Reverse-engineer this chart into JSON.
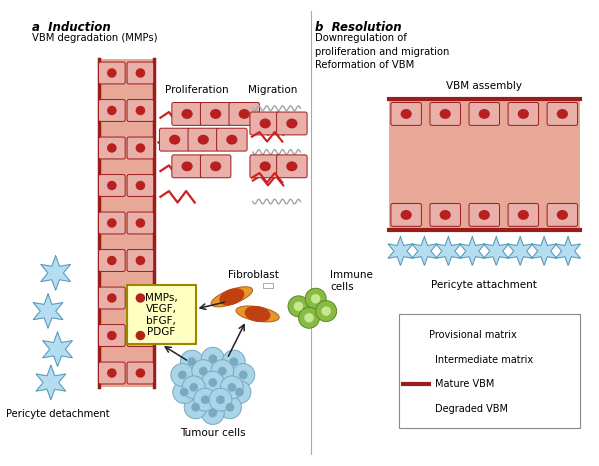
{
  "title_a": "a  Induction",
  "title_b": "b  Resolution",
  "subtitle_a": "VBM degradation (MMPs)",
  "subtitle_b": "Downregulation of\nproliferation and migration\nReformation of VBM",
  "label_proliferation": "Proliferation",
  "label_migration": "Migration",
  "label_vbm_assembly": "VBM assembly",
  "label_pericyte_detachment": "Pericyte detachment",
  "label_pericyte_attachment": "Pericyte attachment",
  "label_mmps": "MMPs,\nVEGF,\nbFGF,\nPDGF",
  "label_fibroblast": "Fibroblast",
  "label_immune": "Immune\ncells",
  "label_tumour": "Tumour cells",
  "legend_items": [
    "Provisional matrix",
    "Intermediate matrix",
    "Mature VBM",
    "Degraded VBM"
  ],
  "colors": {
    "vessel_fill": "#e8a898",
    "vessel_wall_outer": "#c87878",
    "vessel_dark_border": "#9b1c1c",
    "endothelial_cell": "#e8b0a8",
    "endothelial_border": "#9b1c1c",
    "nucleus": "#b82020",
    "pericyte_fill": "#a8d8ee",
    "pericyte_border": "#5090b0",
    "provisional_matrix": "#55cc33",
    "intermediate_matrix": "#aaaaaa",
    "mature_vbm": "#9b1c1c",
    "degraded_vbm": "#cc2020",
    "fibroblast_fill": "#e8952a",
    "fibroblast_border": "#b06018",
    "fibroblast_nucleus": "#c04010",
    "immune_cell": "#88bb44",
    "immune_border": "#5a8822",
    "tumour_cell": "#aad4e8",
    "tumour_border": "#78a8c0",
    "tumour_nucleus": "#78aac0",
    "mmps_box_bg": "#ffffc0",
    "mmps_box_border": "#998800",
    "background": "#ffffff",
    "text": "#222222",
    "arrow": "#222222"
  }
}
